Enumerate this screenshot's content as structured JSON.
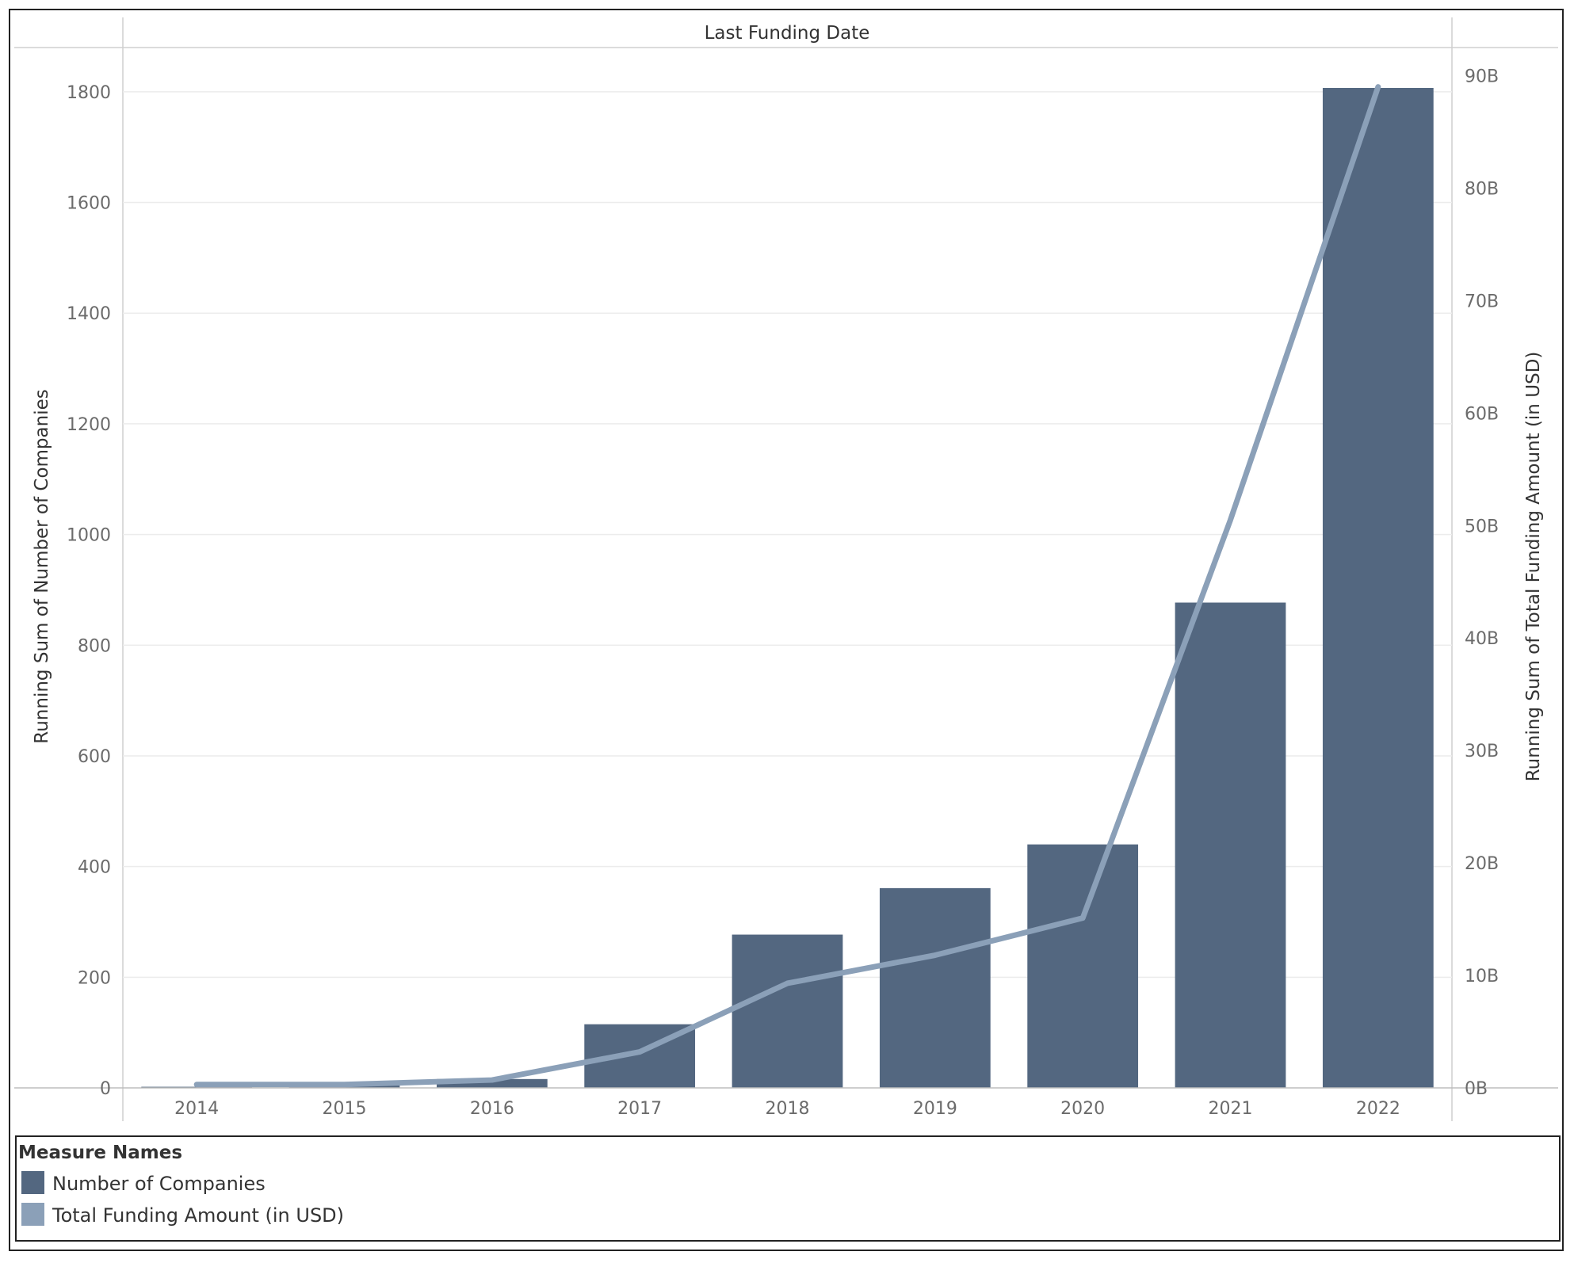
{
  "chart_data": {
    "type": "bar",
    "header": "Last Funding Date",
    "categories": [
      "2014",
      "2015",
      "2016",
      "2017",
      "2018",
      "2019",
      "2020",
      "2021",
      "2022"
    ],
    "series": [
      {
        "name": "Number of Companies",
        "mark": "bar",
        "axis": "left",
        "color": "#536780",
        "values": [
          2,
          5,
          16,
          115,
          277,
          361,
          440,
          877,
          1807
        ]
      },
      {
        "name": "Total Funding Amount (in USD)",
        "mark": "line",
        "axis": "right",
        "color": "#8ba0b8",
        "values": [
          0.3,
          0.3,
          0.7,
          3.2,
          9.3,
          11.8,
          15.1,
          50.5,
          89.0
        ],
        "unit": "B"
      }
    ],
    "y_left": {
      "label": "Running Sum of Number of Companies",
      "range": [
        0,
        1880
      ],
      "ticks": [
        0,
        200,
        400,
        600,
        800,
        1000,
        1200,
        1400,
        1600,
        1800
      ]
    },
    "y_right": {
      "label": "Running Sum of Total Funding Amount (in USD)",
      "range": [
        0,
        92.5
      ],
      "ticks": [
        "0B",
        "10B",
        "20B",
        "30B",
        "40B",
        "50B",
        "60B",
        "70B",
        "80B",
        "90B"
      ]
    },
    "grid": true,
    "legend": {
      "title": "Measure Names",
      "position": "bottom",
      "items": [
        "Number of Companies",
        "Total Funding Amount (in USD)"
      ]
    }
  }
}
